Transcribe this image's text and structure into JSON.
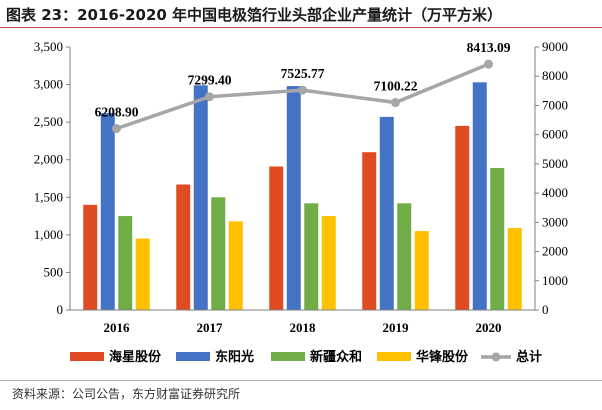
{
  "title": "图表 23：2016-2020 年中国电极箔行业头部企业产量统计（万平方米）",
  "source": "资料来源：公司公告，东方财富证券研究所",
  "colors": {
    "haixing": "#e14b24",
    "dongyangguang": "#4472c4",
    "xinjiang": "#70ad47",
    "huafeng": "#ffc000",
    "total": "#a6a6a6",
    "title_rule": "#c0504d"
  },
  "chart_data": {
    "type": "bar",
    "title": "2016-2020 年中国电极箔行业头部企业产量统计（万平方米）",
    "categories": [
      "2016",
      "2017",
      "2018",
      "2019",
      "2020"
    ],
    "series": [
      {
        "name": "海星股份",
        "type": "bar",
        "axis": "left",
        "color": "#e14b24",
        "values": [
          1400,
          1670,
          1910,
          2100,
          2450
        ]
      },
      {
        "name": "东阳光",
        "type": "bar",
        "axis": "left",
        "color": "#4472c4",
        "values": [
          2620,
          2990,
          2980,
          2570,
          3030
        ]
      },
      {
        "name": "新疆众和",
        "type": "bar",
        "axis": "left",
        "color": "#70ad47",
        "values": [
          1250,
          1500,
          1420,
          1420,
          1890
        ]
      },
      {
        "name": "华锋股份",
        "type": "bar",
        "axis": "left",
        "color": "#ffc000",
        "values": [
          950,
          1180,
          1250,
          1050,
          1090
        ]
      },
      {
        "name": "总计",
        "type": "line",
        "axis": "right",
        "color": "#a6a6a6",
        "values": [
          6208.9,
          7299.4,
          7525.77,
          7100.22,
          8413.09
        ]
      }
    ],
    "total_labels": [
      "6208.90",
      "7299.40",
      "7525.77",
      "7100.22",
      "8413.09"
    ],
    "left_axis": {
      "range": [
        0,
        3500
      ],
      "ticks": [
        "0",
        "500",
        "1,000",
        "1,500",
        "2,000",
        "2,500",
        "3,000",
        "3,500"
      ]
    },
    "right_axis": {
      "range": [
        0,
        9000
      ],
      "ticks": [
        "0",
        "1000",
        "2000",
        "3000",
        "4000",
        "5000",
        "6000",
        "7000",
        "8000",
        "9000"
      ]
    },
    "legend": [
      "海星股份",
      "东阳光",
      "新疆众和",
      "华锋股份",
      "总计"
    ],
    "legend_position": "bottom",
    "grid": false
  }
}
